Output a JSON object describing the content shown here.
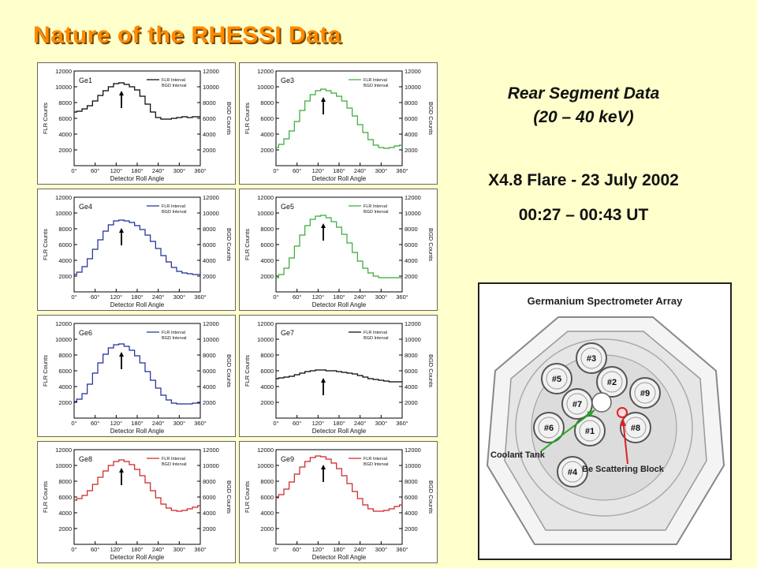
{
  "slide": {
    "title": "Nature of the RHESSI Data",
    "subtitle_line1": "Rear Segment Data",
    "subtitle_line2": "(20 – 40 keV)",
    "flare": "X4.8 Flare - 23 July 2002",
    "time": "00:27 – 00:43 UT"
  },
  "panel_common": {
    "xlabel": "Detector Roll Angle",
    "ylabel_left": "FLR Counts",
    "ylabel_right": "BGD Counts",
    "legend_line1": "FLR Interval",
    "legend_line2": "BGD Interval",
    "x_ticks": [
      "0°",
      "60°",
      "120°",
      "180°",
      "240°",
      "300°",
      "360°"
    ],
    "y_ticks": [
      "2000",
      "4000",
      "6000",
      "8000",
      "10000",
      "12000"
    ]
  },
  "array_diagram": {
    "title": "Germanium Spectrometer Array",
    "detectors": [
      "#1",
      "#2",
      "#3",
      "#4",
      "#5",
      "#6",
      "#7",
      "#8",
      "#9"
    ],
    "label_coolant": "Coolant Tank",
    "label_scatter": "Be Scattering Block",
    "colors": {
      "coolant_arrow": "#22aa22",
      "scatter_arrow": "#dd2222"
    }
  },
  "chart_data": [
    {
      "type": "line",
      "label": "Ge1",
      "color": "#000000",
      "xlim": [
        0,
        360
      ],
      "ylim": [
        0,
        12000
      ],
      "x": [
        0,
        15,
        30,
        45,
        60,
        75,
        90,
        105,
        120,
        135,
        150,
        165,
        180,
        195,
        210,
        225,
        240,
        255,
        270,
        285,
        300,
        315,
        330,
        345,
        360
      ],
      "values": [
        6800,
        6900,
        7200,
        7600,
        8200,
        8900,
        9500,
        10000,
        10400,
        10500,
        10300,
        10000,
        9600,
        8800,
        7800,
        6800,
        6100,
        5900,
        5900,
        6000,
        6100,
        6200,
        6100,
        6200,
        6200
      ],
      "peak_arrow_x": 135
    },
    {
      "type": "line",
      "label": "Ge3",
      "color": "#33aa33",
      "xlim": [
        0,
        360
      ],
      "ylim": [
        0,
        12000
      ],
      "x": [
        0,
        15,
        30,
        45,
        60,
        75,
        90,
        105,
        120,
        135,
        150,
        165,
        180,
        195,
        210,
        225,
        240,
        255,
        270,
        285,
        300,
        315,
        330,
        345,
        360
      ],
      "values": [
        2300,
        2700,
        3400,
        4400,
        5600,
        7000,
        8200,
        9000,
        9500,
        9700,
        9500,
        9200,
        8800,
        8200,
        7300,
        6300,
        5200,
        4200,
        3300,
        2600,
        2300,
        2200,
        2300,
        2500,
        2600
      ],
      "peak_arrow_x": 135
    },
    {
      "type": "line",
      "label": "Ge4",
      "color": "#1a2a99",
      "xlim": [
        0,
        360
      ],
      "ylim": [
        0,
        12000
      ],
      "x": [
        0,
        15,
        30,
        45,
        60,
        75,
        90,
        105,
        120,
        135,
        150,
        165,
        180,
        195,
        210,
        225,
        240,
        255,
        270,
        285,
        300,
        315,
        330,
        345,
        360
      ],
      "values": [
        2200,
        2500,
        3200,
        4200,
        5400,
        6600,
        7700,
        8500,
        9000,
        9100,
        9000,
        8800,
        8400,
        7900,
        7200,
        6400,
        5500,
        4600,
        3800,
        3100,
        2600,
        2400,
        2300,
        2200,
        2200
      ],
      "peak_arrow_x": 135
    },
    {
      "type": "line",
      "label": "Ge5",
      "color": "#33aa33",
      "xlim": [
        0,
        360
      ],
      "ylim": [
        0,
        12000
      ],
      "x": [
        0,
        15,
        30,
        45,
        60,
        75,
        90,
        105,
        120,
        135,
        150,
        165,
        180,
        195,
        210,
        225,
        240,
        255,
        270,
        285,
        300,
        315,
        330,
        345,
        360
      ],
      "values": [
        1800,
        2200,
        3000,
        4300,
        5800,
        7200,
        8400,
        9200,
        9600,
        9700,
        9400,
        8900,
        8200,
        7300,
        6200,
        5000,
        3900,
        3000,
        2400,
        2000,
        1800,
        1800,
        1800,
        1800,
        1800
      ],
      "peak_arrow_x": 135
    },
    {
      "type": "line",
      "label": "Ge6",
      "color": "#1a2a99",
      "xlim": [
        0,
        360
      ],
      "ylim": [
        0,
        12000
      ],
      "x": [
        0,
        15,
        30,
        45,
        60,
        75,
        90,
        105,
        120,
        135,
        150,
        165,
        180,
        195,
        210,
        225,
        240,
        255,
        270,
        285,
        300,
        315,
        330,
        345,
        360
      ],
      "values": [
        2100,
        2400,
        3100,
        4300,
        5700,
        7000,
        8100,
        8900,
        9300,
        9400,
        9100,
        8600,
        7900,
        7000,
        5900,
        4800,
        3800,
        2900,
        2300,
        1900,
        1800,
        1800,
        1800,
        1900,
        1900
      ],
      "peak_arrow_x": 135
    },
    {
      "type": "line",
      "label": "Ge7",
      "color": "#000000",
      "xlim": [
        0,
        360
      ],
      "ylim": [
        0,
        12000
      ],
      "x": [
        0,
        15,
        30,
        45,
        60,
        75,
        90,
        105,
        120,
        135,
        150,
        165,
        180,
        195,
        210,
        225,
        240,
        255,
        270,
        285,
        300,
        315,
        330,
        345,
        360
      ],
      "values": [
        5000,
        5100,
        5200,
        5300,
        5500,
        5700,
        5900,
        6000,
        6100,
        6100,
        6000,
        6000,
        5900,
        5800,
        5700,
        5600,
        5400,
        5200,
        5000,
        4900,
        4800,
        4700,
        4600,
        4600,
        4600
      ],
      "peak_arrow_x": 135
    },
    {
      "type": "line",
      "label": "Ge8",
      "color": "#cc2222",
      "xlim": [
        0,
        360
      ],
      "ylim": [
        0,
        12000
      ],
      "x": [
        0,
        15,
        30,
        45,
        60,
        75,
        90,
        105,
        120,
        135,
        150,
        165,
        180,
        195,
        210,
        225,
        240,
        255,
        270,
        285,
        300,
        315,
        330,
        345,
        360
      ],
      "values": [
        5600,
        5800,
        6200,
        6800,
        7600,
        8500,
        9300,
        10000,
        10500,
        10700,
        10500,
        10100,
        9500,
        8700,
        7800,
        6800,
        5900,
        5100,
        4600,
        4300,
        4200,
        4300,
        4500,
        4700,
        4900
      ],
      "peak_arrow_x": 135
    },
    {
      "type": "line",
      "label": "Ge9",
      "color": "#cc2222",
      "xlim": [
        0,
        360
      ],
      "ylim": [
        0,
        12000
      ],
      "x": [
        0,
        15,
        30,
        45,
        60,
        75,
        90,
        105,
        120,
        135,
        150,
        165,
        180,
        195,
        210,
        225,
        240,
        255,
        270,
        285,
        300,
        315,
        330,
        345,
        360
      ],
      "values": [
        5900,
        6300,
        7000,
        7900,
        8900,
        9800,
        10500,
        11000,
        11200,
        11100,
        10800,
        10300,
        9600,
        8700,
        7700,
        6700,
        5800,
        5000,
        4500,
        4200,
        4200,
        4300,
        4500,
        4800,
        5000
      ],
      "peak_arrow_x": 135
    }
  ]
}
